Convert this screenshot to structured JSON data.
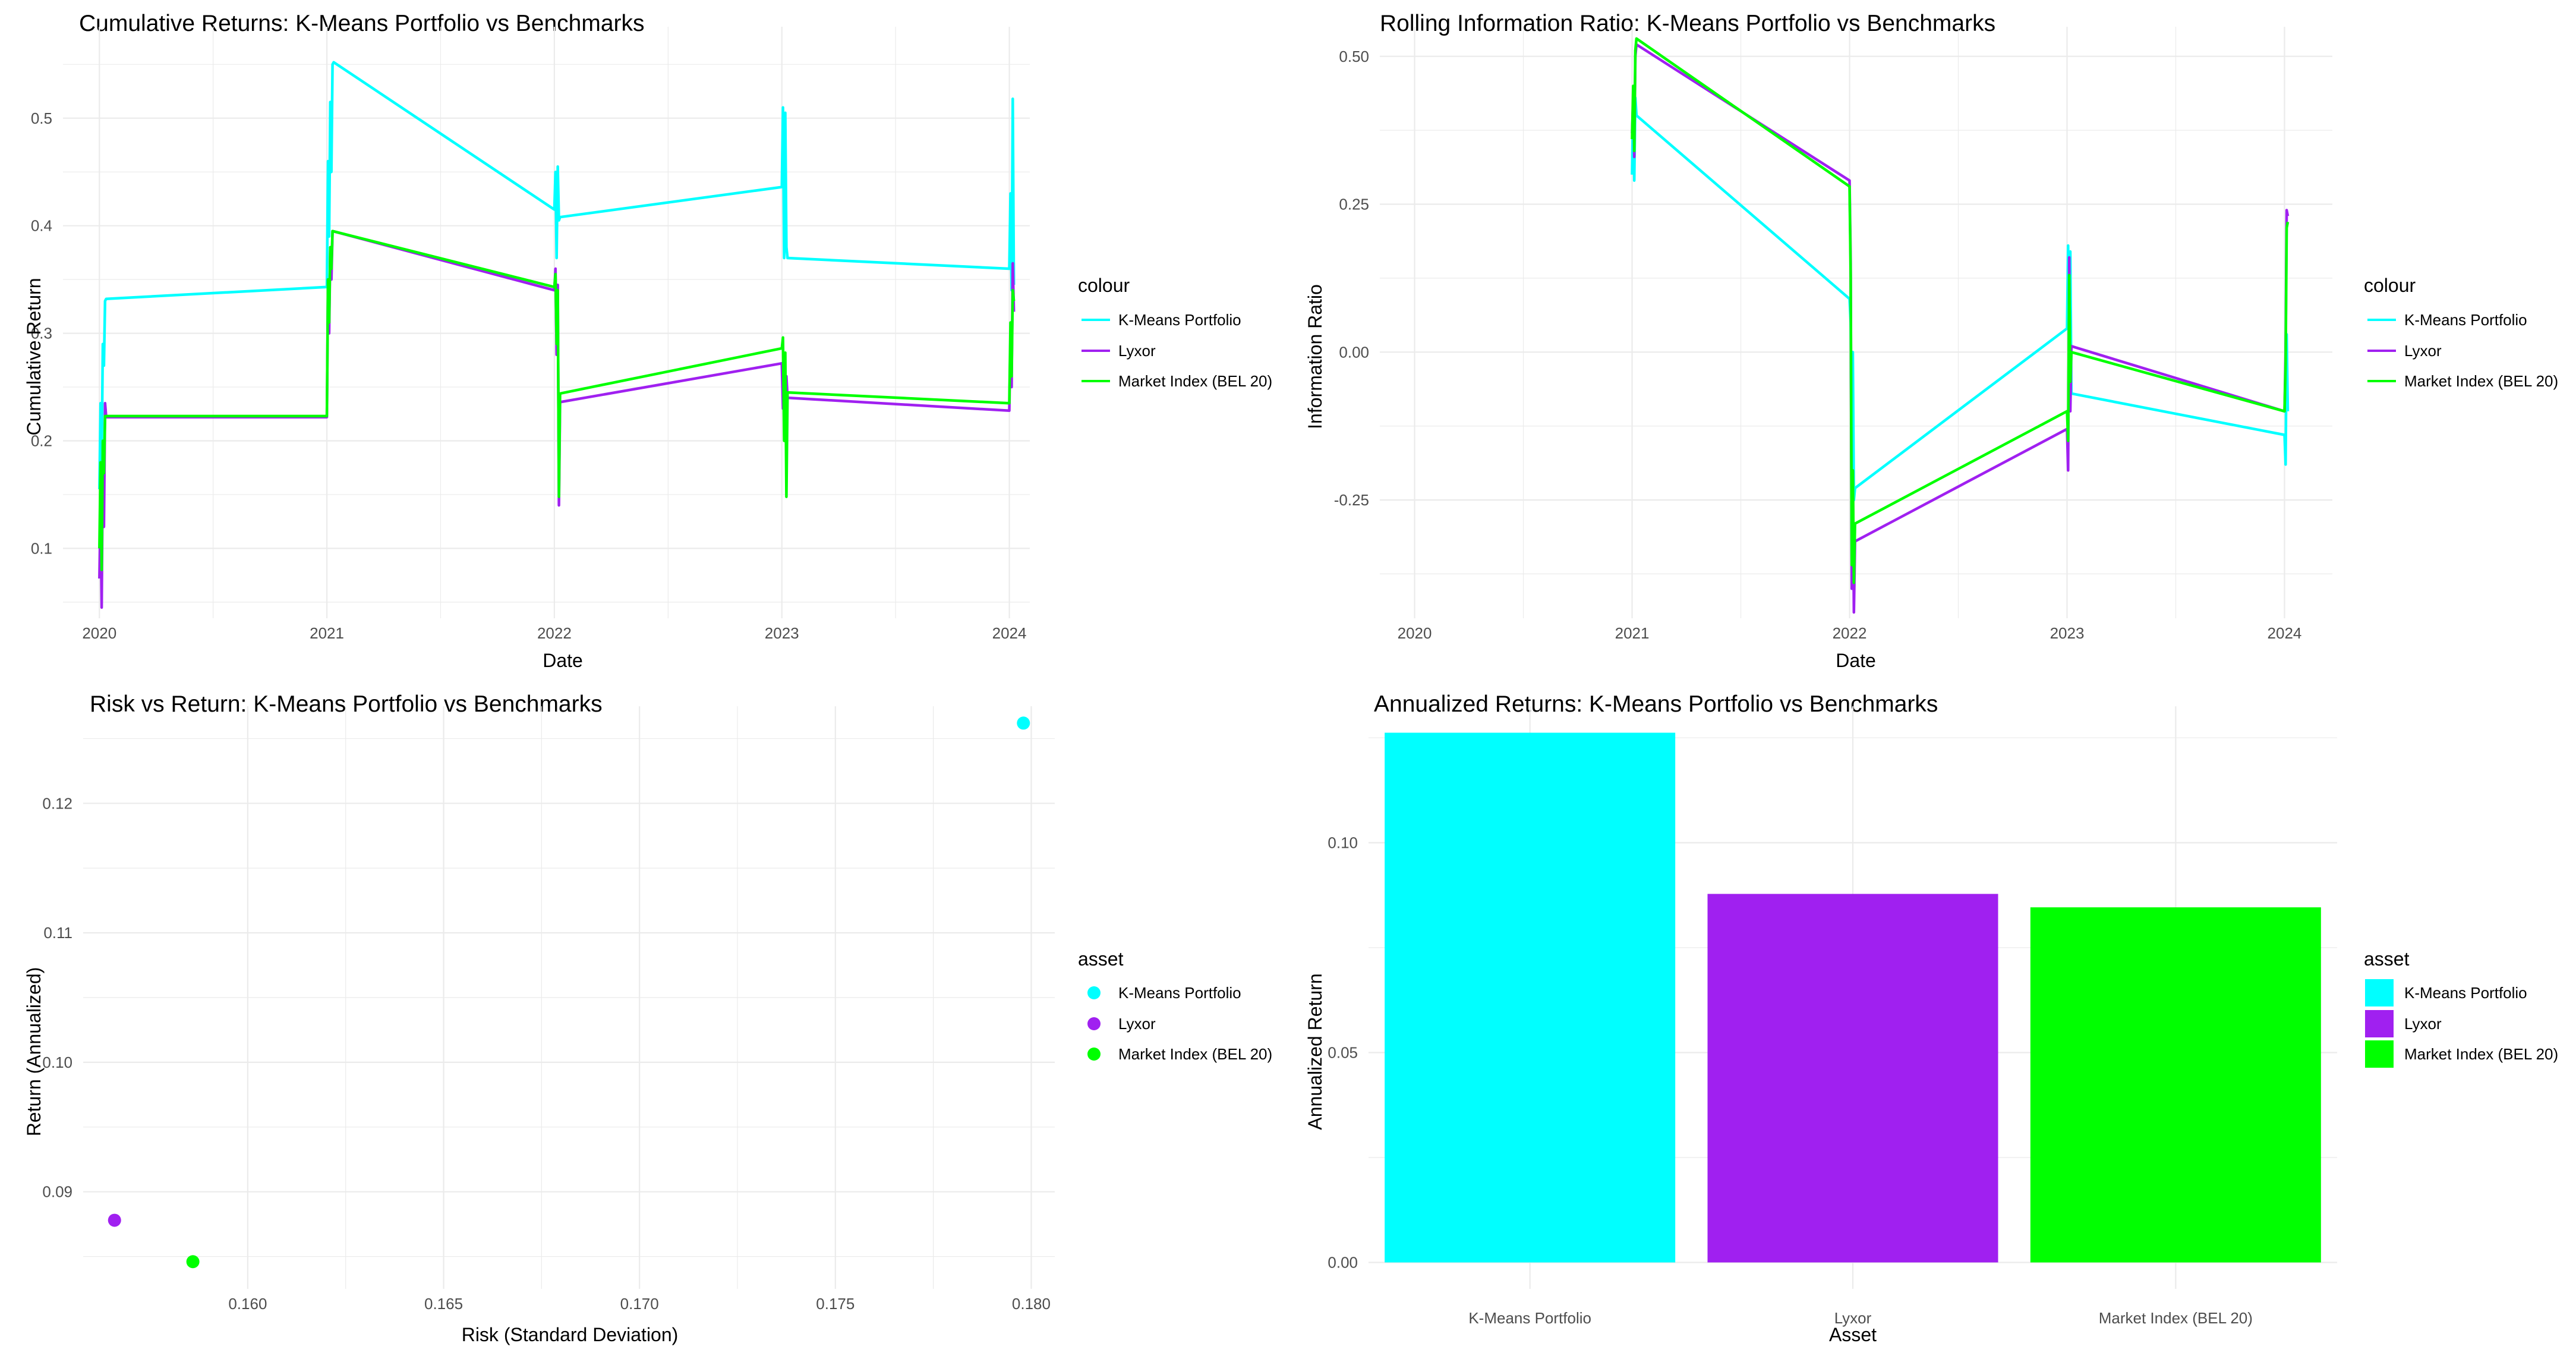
{
  "colors": {
    "kmeans": "#00FFFF",
    "lyxor": "#A020F0",
    "bel20": "#00FF00",
    "grid": "#ebebeb"
  },
  "chart_data": [
    {
      "type": "line",
      "title": "Cumulative Returns: K-Means Portfolio vs Benchmarks",
      "xlabel": "Date",
      "ylabel": "Cumulative Return",
      "xlim": [
        2019.84,
        2024.09
      ],
      "ylim": [
        0.035,
        0.585
      ],
      "xticks": [
        2020,
        2021,
        2022,
        2023,
        2024
      ],
      "xtick_labels": [
        "2020",
        "2021",
        "2022",
        "2023",
        "2024"
      ],
      "yticks": [
        0.1,
        0.2,
        0.3,
        0.4,
        0.5
      ],
      "ytick_labels": [
        "0.1",
        "0.2",
        "0.3",
        "0.4",
        "0.5"
      ],
      "legend_title": "colour",
      "legend_position": "right",
      "series": [
        {
          "name": "K-Means Portfolio",
          "color_key": "kmeans",
          "x": [
            2020.0,
            2020.005,
            2020.01,
            2020.015,
            2020.02,
            2020.025,
            2020.03,
            2021.0,
            2021.005,
            2021.01,
            2021.015,
            2021.02,
            2021.025,
            2021.03,
            2022.0,
            2022.005,
            2022.01,
            2022.015,
            2022.02,
            2022.025,
            2023.0,
            2023.005,
            2023.01,
            2023.015,
            2023.02,
            2023.025,
            2024.0,
            2024.005,
            2024.01,
            2024.015,
            2024.02
          ],
          "values": [
            0.155,
            0.235,
            0.18,
            0.29,
            0.27,
            0.33,
            0.332,
            0.343,
            0.46,
            0.39,
            0.515,
            0.45,
            0.55,
            0.552,
            0.415,
            0.45,
            0.37,
            0.455,
            0.405,
            0.408,
            0.436,
            0.51,
            0.37,
            0.505,
            0.38,
            0.37,
            0.36,
            0.43,
            0.34,
            0.518,
            0.345
          ]
        },
        {
          "name": "Lyxor",
          "color_key": "lyxor",
          "x": [
            2020.0,
            2020.005,
            2020.01,
            2020.015,
            2020.02,
            2020.025,
            2020.03,
            2021.0,
            2021.005,
            2021.01,
            2021.015,
            2021.02,
            2021.025,
            2022.0,
            2022.005,
            2022.01,
            2022.015,
            2022.02,
            2022.025,
            2023.0,
            2023.005,
            2023.01,
            2023.015,
            2023.02,
            2023.025,
            2024.0,
            2024.005,
            2024.01,
            2024.015,
            2024.02
          ],
          "values": [
            0.072,
            0.14,
            0.045,
            0.18,
            0.12,
            0.235,
            0.222,
            0.222,
            0.35,
            0.3,
            0.38,
            0.35,
            0.395,
            0.34,
            0.36,
            0.28,
            0.345,
            0.14,
            0.236,
            0.272,
            0.23,
            0.27,
            0.2,
            0.26,
            0.24,
            0.228,
            0.3,
            0.25,
            0.365,
            0.32
          ]
        },
        {
          "name": "Market Index (BEL 20)",
          "color_key": "bel20",
          "x": [
            2020.0,
            2020.005,
            2020.01,
            2020.015,
            2020.02,
            2020.025,
            2020.03,
            2021.0,
            2021.005,
            2021.01,
            2021.015,
            2021.02,
            2021.025,
            2022.0,
            2022.005,
            2022.01,
            2022.015,
            2022.02,
            2022.025,
            2023.0,
            2023.005,
            2023.01,
            2023.015,
            2023.02,
            2023.025,
            2024.0,
            2024.005,
            2024.01,
            2024.015,
            2024.02
          ],
          "values": [
            0.1,
            0.18,
            0.08,
            0.2,
            0.17,
            0.223,
            0.223,
            0.223,
            0.35,
            0.31,
            0.38,
            0.36,
            0.395,
            0.343,
            0.355,
            0.29,
            0.34,
            0.148,
            0.244,
            0.286,
            0.296,
            0.2,
            0.282,
            0.148,
            0.245,
            0.235,
            0.31,
            0.26,
            0.34,
            0.33
          ]
        }
      ]
    },
    {
      "type": "line",
      "title": "Rolling Information Ratio: K-Means Portfolio vs Benchmarks",
      "xlabel": "Date",
      "ylabel": "Information Ratio",
      "xlim": [
        2019.84,
        2024.22
      ],
      "ylim": [
        -0.45,
        0.55
      ],
      "xticks": [
        2020,
        2021,
        2022,
        2023,
        2024
      ],
      "xtick_labels": [
        "2020",
        "2021",
        "2022",
        "2023",
        "2024"
      ],
      "yticks": [
        -0.25,
        0.0,
        0.25,
        0.5
      ],
      "ytick_labels": [
        "-0.25",
        "0.00",
        "0.25",
        "0.50"
      ],
      "legend_title": "colour",
      "legend_position": "right",
      "series": [
        {
          "name": "K-Means Portfolio",
          "color_key": "kmeans",
          "x": [
            2021.0,
            2021.005,
            2021.01,
            2021.015,
            2021.02,
            2022.0,
            2022.005,
            2022.01,
            2022.015,
            2022.02,
            2022.025,
            2023.0,
            2023.005,
            2023.01,
            2023.015,
            2023.02,
            2024.0,
            2024.005,
            2024.01,
            2024.015
          ],
          "values": [
            0.3,
            0.44,
            0.29,
            0.43,
            0.4,
            0.09,
            0.05,
            -0.2,
            0.0,
            -0.25,
            -0.23,
            0.04,
            0.18,
            -0.05,
            0.17,
            -0.07,
            -0.14,
            -0.19,
            0.03,
            -0.1
          ]
        },
        {
          "name": "Lyxor",
          "color_key": "lyxor",
          "x": [
            2021.0,
            2021.005,
            2021.01,
            2021.015,
            2021.02,
            2022.0,
            2022.005,
            2022.01,
            2022.015,
            2022.02,
            2022.025,
            2023.0,
            2023.005,
            2023.01,
            2023.015,
            2023.02,
            2024.0,
            2024.005,
            2024.01,
            2024.015
          ],
          "values": [
            0.37,
            0.43,
            0.33,
            0.5,
            0.52,
            0.29,
            0.15,
            -0.4,
            -0.2,
            -0.44,
            -0.32,
            -0.13,
            -0.2,
            0.16,
            -0.1,
            0.01,
            -0.1,
            0.0,
            0.24,
            0.23
          ]
        },
        {
          "name": "Market Index (BEL 20)",
          "color_key": "bel20",
          "x": [
            2021.0,
            2021.005,
            2021.01,
            2021.015,
            2021.02,
            2022.0,
            2022.005,
            2022.01,
            2022.015,
            2022.02,
            2022.025,
            2023.0,
            2023.005,
            2023.01,
            2023.015,
            2023.02,
            2024.0,
            2024.005,
            2024.01,
            2024.015
          ],
          "values": [
            0.36,
            0.45,
            0.34,
            0.51,
            0.53,
            0.28,
            0.13,
            -0.36,
            -0.2,
            -0.39,
            -0.29,
            -0.1,
            -0.15,
            0.13,
            -0.05,
            0.0,
            -0.1,
            -0.02,
            0.21,
            0.22
          ]
        }
      ]
    },
    {
      "type": "scatter",
      "title": "Risk vs Return: K-Means Portfolio vs Benchmarks",
      "xlabel": "Risk (Standard Deviation)",
      "ylabel": "Return (Annualized)",
      "xlim": [
        0.1558,
        0.1806
      ],
      "ylim": [
        0.0825,
        0.1275
      ],
      "xticks": [
        0.16,
        0.165,
        0.17,
        0.175,
        0.18
      ],
      "xtick_labels": [
        "0.160",
        "0.165",
        "0.170",
        "0.175",
        "0.180"
      ],
      "yticks": [
        0.09,
        0.1,
        0.11,
        0.12
      ],
      "ytick_labels": [
        "0.09",
        "0.10",
        "0.11",
        "0.12"
      ],
      "legend_title": "asset",
      "legend_position": "right",
      "points": [
        {
          "name": "K-Means Portfolio",
          "color_key": "kmeans",
          "x": 0.1798,
          "y": 0.1262
        },
        {
          "name": "Lyxor",
          "color_key": "lyxor",
          "x": 0.1566,
          "y": 0.0878
        },
        {
          "name": "Market Index (BEL 20)",
          "color_key": "bel20",
          "x": 0.1586,
          "y": 0.0846
        }
      ]
    },
    {
      "type": "bar",
      "title": "Annualized Returns: K-Means Portfolio vs Benchmarks",
      "xlabel": "Asset",
      "ylabel": "Annualized Return",
      "categories": [
        "K-Means Portfolio",
        "Lyxor",
        "Market Index (BEL 20)"
      ],
      "values": [
        0.1262,
        0.0878,
        0.0846
      ],
      "color_keys": [
        "kmeans",
        "lyxor",
        "bel20"
      ],
      "ylim": [
        -0.0063,
        0.1325
      ],
      "yticks": [
        0.0,
        0.05,
        0.1
      ],
      "ytick_labels": [
        "0.00",
        "0.05",
        "0.10"
      ],
      "legend_title": "asset",
      "legend_position": "right"
    }
  ]
}
